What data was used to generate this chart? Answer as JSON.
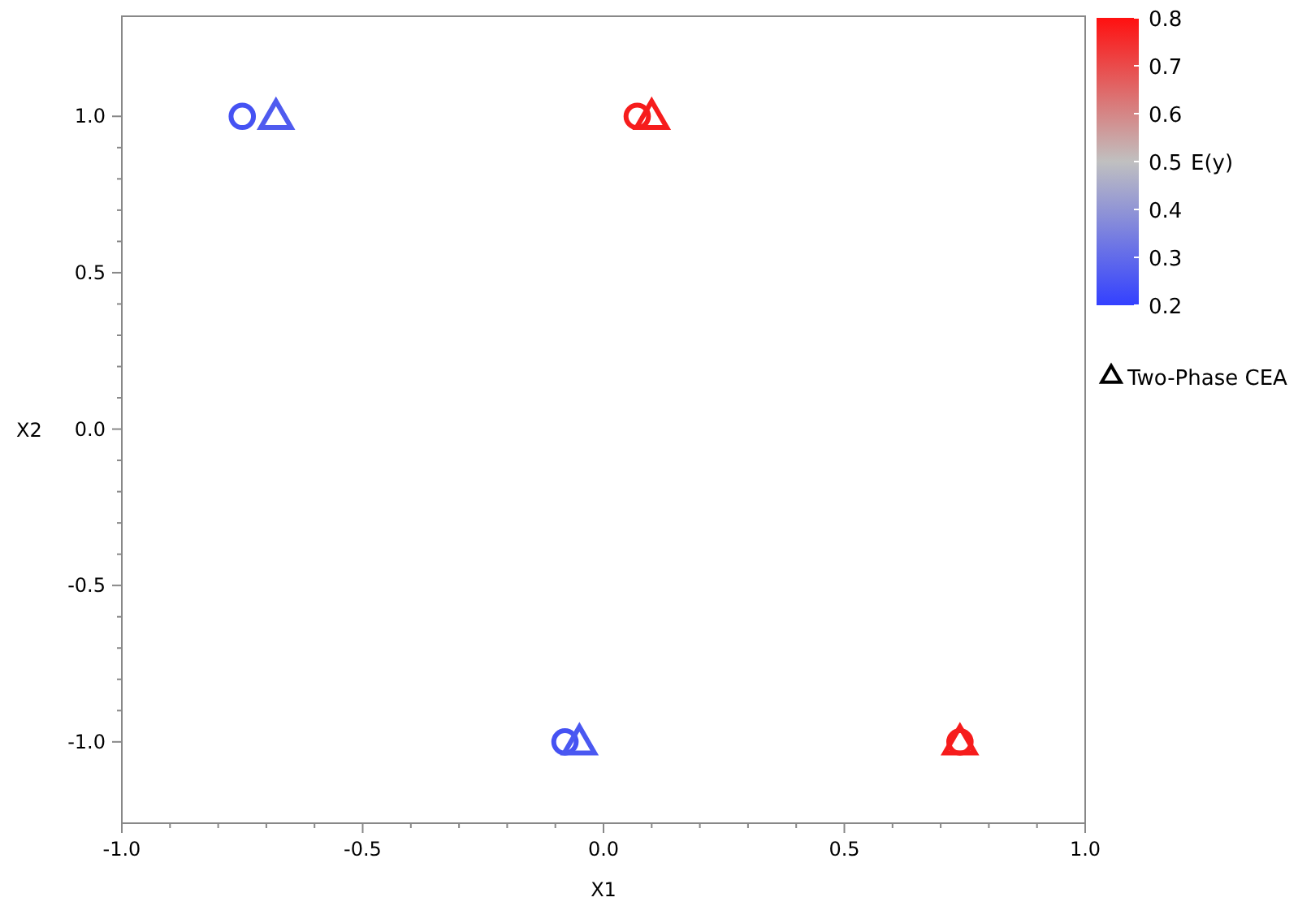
{
  "chart_data": {
    "type": "scatter",
    "xlabel": "X1",
    "ylabel": "X2",
    "clabel": "E(y)",
    "xlim": [
      -1,
      1
    ],
    "xticks": [
      {
        "value": -1,
        "label": "-1.0"
      },
      {
        "value": -0.5,
        "label": "-0.5"
      },
      {
        "value": 0,
        "label": "0.0"
      },
      {
        "value": 0.5,
        "label": "0.5"
      },
      {
        "value": 1,
        "label": "1.0"
      }
    ],
    "ylim": [
      -1.26,
      1.32
    ],
    "yticks": [
      {
        "value": -1,
        "label": "-1.0"
      },
      {
        "value": -0.5,
        "label": "-0.5"
      },
      {
        "value": 0,
        "label": "0.0"
      },
      {
        "value": 0.5,
        "label": "0.5"
      },
      {
        "value": 1,
        "label": "1.0"
      }
    ],
    "clim": [
      0.2,
      0.8
    ],
    "cticks": [
      0.2,
      0.3,
      0.4,
      0.5,
      0.6,
      0.7,
      0.8
    ],
    "grid": false,
    "legend": "right",
    "series": [
      {
        "marker": "circle",
        "x": [
          -0.75,
          0.07,
          -0.08,
          0.74
        ],
        "values": [
          1,
          1,
          -1,
          -1
        ],
        "cvalues": [
          0.25,
          0.78,
          0.25,
          0.78
        ],
        "colors": [
          "#3f4ff0",
          "#f01c1c",
          "#3f4ff0",
          "#f01c1c"
        ]
      },
      {
        "name": "Two-Phase CEA",
        "marker": "triangle",
        "x": [
          -0.68,
          0.1,
          -0.05,
          0.74
        ],
        "values": [
          1,
          1,
          -1,
          -1
        ],
        "cvalues": [
          0.27,
          0.78,
          0.26,
          0.78
        ],
        "colors": [
          "#4a58ee",
          "#f01c1c",
          "#4555f0",
          "#f01c1c"
        ]
      }
    ]
  }
}
